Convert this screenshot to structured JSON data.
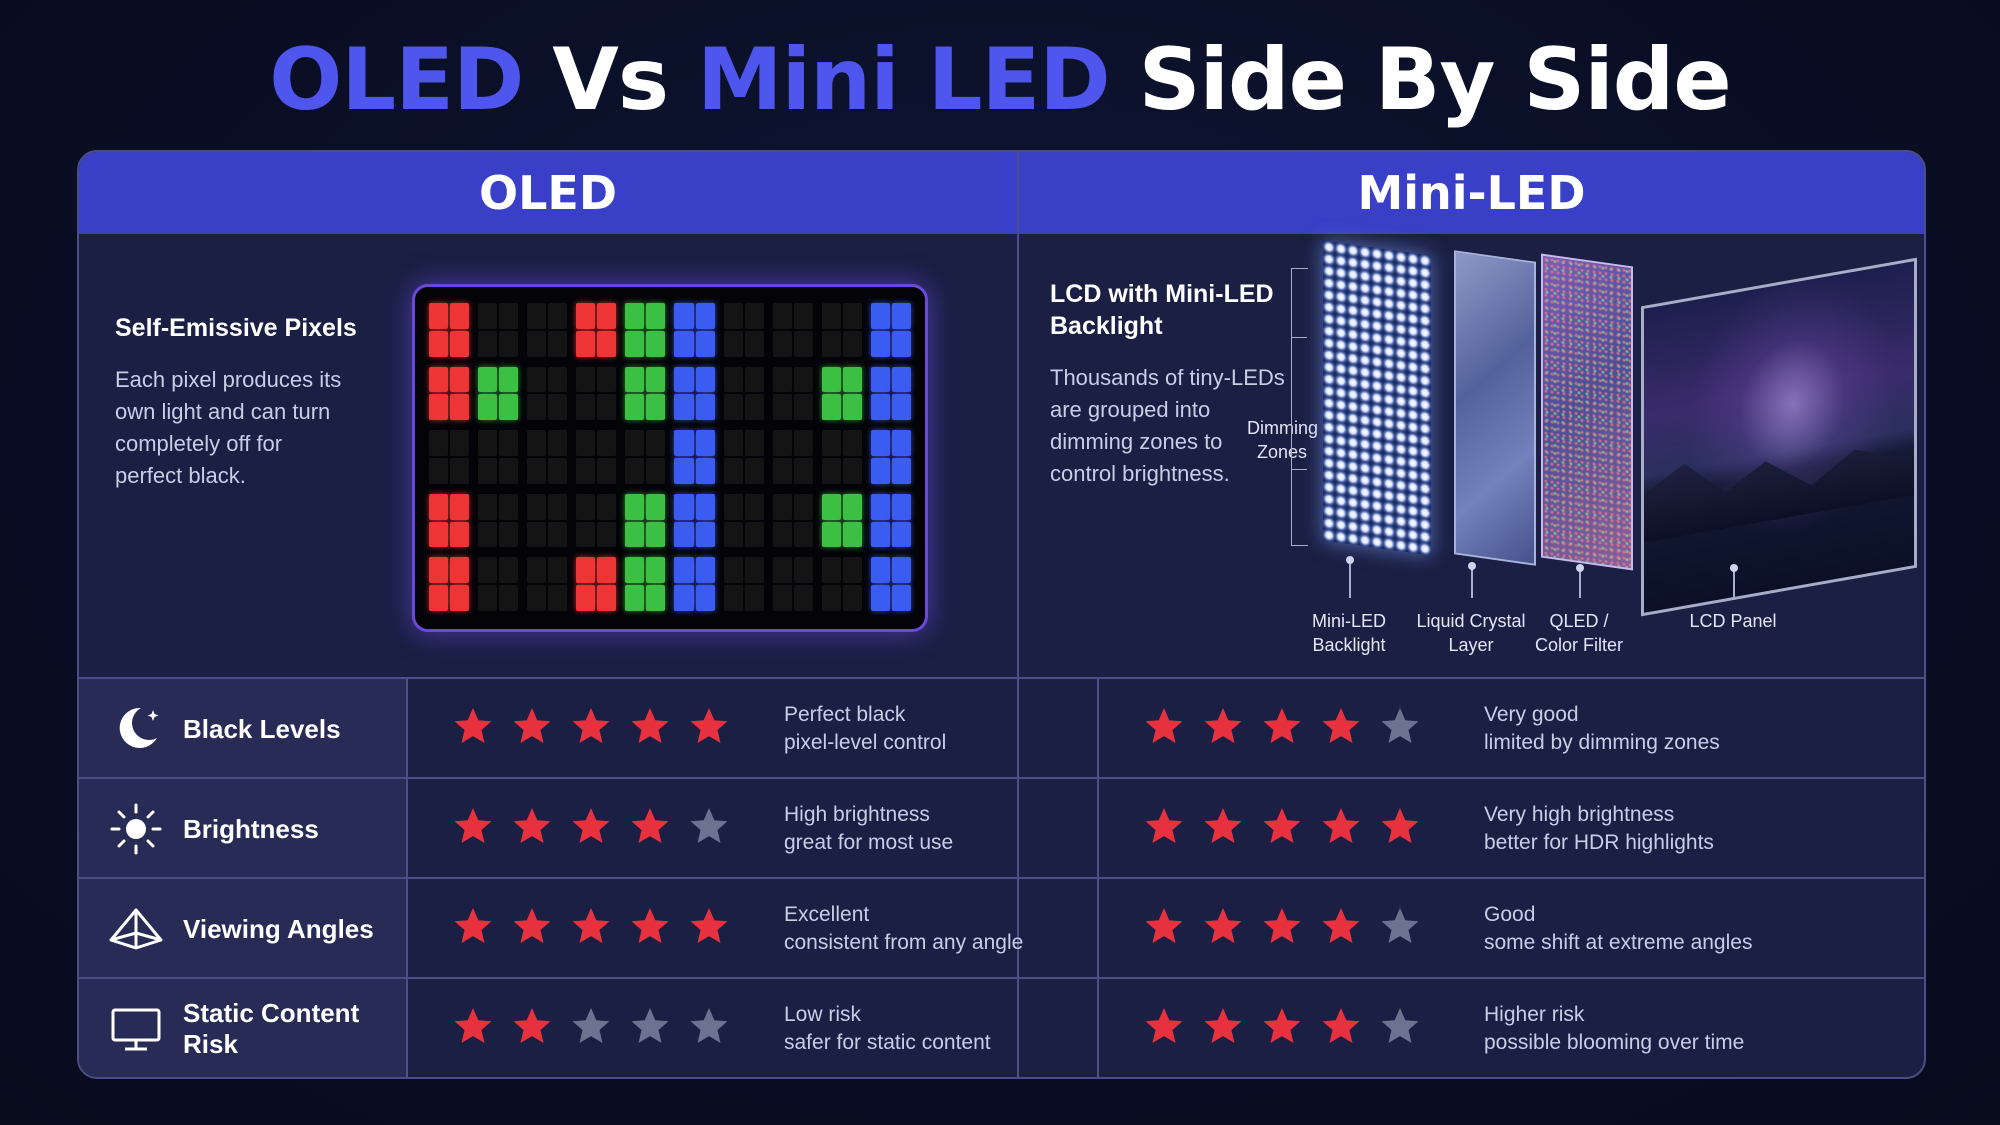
{
  "title": {
    "part1": "OLED",
    "part2": "Vs",
    "part3": "Mini LED",
    "part4": "Side By Side"
  },
  "columns": {
    "oled": "OLED",
    "mini": "Mini-LED"
  },
  "oled_feature": {
    "title": "Self-Emissive Pixels",
    "desc": [
      "Each pixel produces its",
      "own light and can turn",
      "completely off for",
      "perfect black."
    ]
  },
  "pixel_grid": [
    [
      "r",
      "",
      "",
      "r",
      "g",
      "b",
      "",
      "",
      "",
      "b"
    ],
    [
      "r",
      "g",
      "",
      "",
      "g",
      "b",
      "",
      "",
      "g",
      "b"
    ],
    [
      "",
      "",
      "",
      "",
      "",
      "b",
      "",
      "",
      "",
      "b"
    ],
    [
      "r",
      "",
      "",
      "",
      "g",
      "b",
      "",
      "",
      "g",
      "b"
    ],
    [
      "r",
      "",
      "",
      "r",
      "g",
      "b",
      "",
      "",
      "",
      "b"
    ]
  ],
  "mini_feature": {
    "title": [
      "LCD with Mini-LED",
      "Backlight"
    ],
    "desc": [
      "Thousands of tiny-LEDs",
      "are grouped into",
      "dimming zones to",
      "control brightness."
    ]
  },
  "diagram": {
    "dimming": [
      "Dimming",
      "Zones"
    ],
    "layers": [
      {
        "line1": "Mini-LED",
        "line2": "Backlight"
      },
      {
        "line1": "Liquid Crystal",
        "line2": "Layer"
      },
      {
        "line1": "QLED /",
        "line2": "Color Filter"
      },
      {
        "line1": "LCD Panel",
        "line2": ""
      }
    ]
  },
  "colors": {
    "accent": "#4f56ee",
    "header": "#3a3fc8",
    "star_on": "#e8313f",
    "star_off": "#6e7291"
  },
  "rows": [
    {
      "icon": "moon-icon",
      "label": "Black Levels",
      "oled_stars": 5,
      "oled_desc": "Perfect black\npixel-level control",
      "mini_stars": 4,
      "mini_desc": "Very good\nlimited by dimming zones"
    },
    {
      "icon": "sun-icon",
      "label": "Brightness",
      "oled_stars": 4,
      "oled_desc": "High brightness\ngreat for most use",
      "mini_stars": 5,
      "mini_desc": "Very high brightness\nbetter for HDR highlights"
    },
    {
      "icon": "viewing-angle-icon",
      "label": "Viewing Angles",
      "oled_stars": 5,
      "oled_desc": "Excellent\nconsistent from any angle",
      "mini_stars": 4,
      "mini_desc": "Good\nsome shift at extreme angles"
    },
    {
      "icon": "monitor-icon",
      "label": "Static Content Risk",
      "oled_stars": 2,
      "oled_desc": "Low risk\nsafer for static content",
      "mini_stars": 4,
      "mini_desc": "Higher risk\npossible blooming over time"
    }
  ]
}
